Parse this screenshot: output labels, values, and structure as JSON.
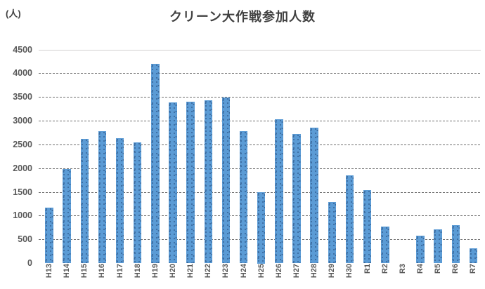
{
  "chart": {
    "title": "クリーン大作戦参加人数",
    "unit_label": "(人)"
  },
  "chart_data": {
    "type": "bar",
    "title": "クリーン大作戦参加人数",
    "ylabel": "(人)",
    "xlabel": "",
    "categories": [
      "H13",
      "H14",
      "H15",
      "H16",
      "H17",
      "H18",
      "H19",
      "H20",
      "H21",
      "H22",
      "H23",
      "H24",
      "H25",
      "H26",
      "H27",
      "H28",
      "H29",
      "H30",
      "R1",
      "R2",
      "R3",
      "R4",
      "R5",
      "R6",
      "R7"
    ],
    "values": [
      1170,
      1990,
      2620,
      2780,
      2640,
      2550,
      4200,
      3390,
      3410,
      3440,
      3490,
      2780,
      1500,
      3030,
      2730,
      2860,
      1290,
      1860,
      1540,
      780,
      0,
      580,
      710,
      810,
      320
    ],
    "ylim": [
      0,
      4500
    ],
    "ytick_step": 500,
    "grid": true,
    "legend": false,
    "colors": {
      "bar": "#5B9BD5",
      "bar_dots": "#3A6A9E",
      "gridline": "#6E6E6E",
      "top_gridline": "#D2D0D0",
      "tick_label": "#595959",
      "title": "#404040"
    }
  }
}
